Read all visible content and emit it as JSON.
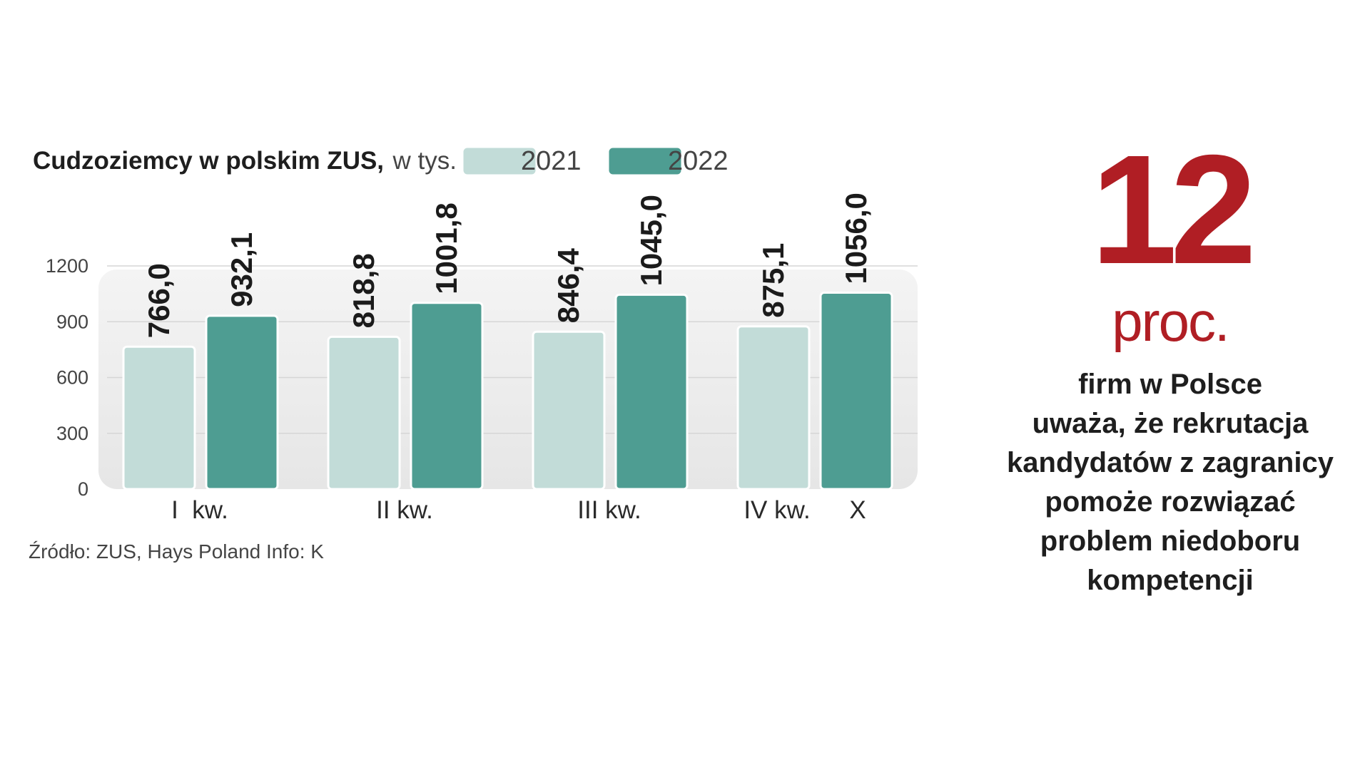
{
  "chart_data": {
    "type": "bar",
    "title": "Cudzoziemcy w polskim ZUS,",
    "title_suffix": "w tys.",
    "categories": [
      "I  kw.",
      "II kw.",
      "III kw.",
      "IV kw.",
      "X"
    ],
    "series": [
      {
        "name": "2021",
        "color": "#c2dcd8",
        "values": [
          766.0,
          818.8,
          846.4,
          875.1,
          null
        ]
      },
      {
        "name": "2022",
        "color": "#4e9d92",
        "values": [
          932.1,
          1001.8,
          1045.0,
          null,
          1056.0
        ]
      }
    ],
    "value_labels": {
      "2021": [
        "766,0",
        "818,8",
        "846,4",
        "875,1",
        ""
      ],
      "2022": [
        "932,1",
        "1001,8",
        "1045,0",
        "",
        "1056,0"
      ]
    },
    "y_ticks": [
      "0",
      "300",
      "600",
      "900",
      "1200"
    ],
    "ylim": [
      0,
      1200
    ],
    "grid": true,
    "legend_position": "top",
    "source": "Źródło: ZUS, Hays Poland  Info: K"
  },
  "stat": {
    "number": "12",
    "unit": "proc.",
    "description_lines": [
      "firm w Polsce",
      "uważa, że rekrutacja",
      "kandydatów  z zagranicy",
      "pomoże rozwiązać",
      "problem niedoboru",
      "kompetencji"
    ],
    "color": "#b01e24"
  }
}
